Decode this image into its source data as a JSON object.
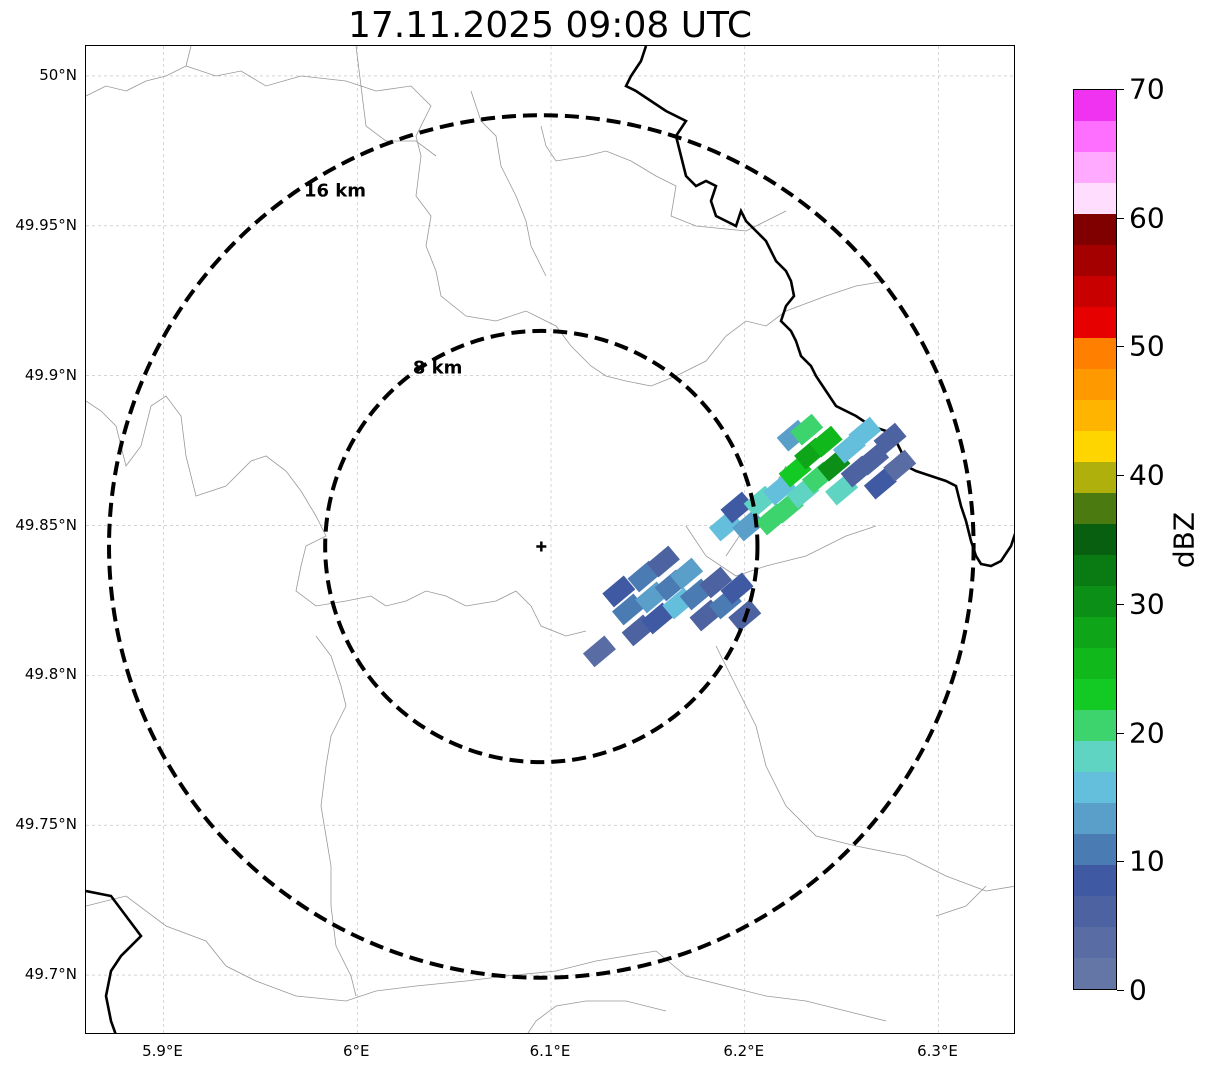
{
  "title": "17.11.2025 09:08 UTC",
  "map": {
    "lon_range": [
      5.86,
      6.34
    ],
    "lat_range": [
      49.68,
      50.01
    ],
    "lon_ticks": [
      {
        "value": 5.9,
        "label": "5.9°E"
      },
      {
        "value": 6.0,
        "label": "6°E"
      },
      {
        "value": 6.1,
        "label": "6.1°E"
      },
      {
        "value": 6.2,
        "label": "6.2°E"
      },
      {
        "value": 6.3,
        "label": "6.3°E"
      }
    ],
    "lat_ticks": [
      {
        "value": 50.0,
        "label": "50°N"
      },
      {
        "value": 49.95,
        "label": "49.95°N"
      },
      {
        "value": 49.9,
        "label": "49.9°N"
      },
      {
        "value": 49.85,
        "label": "49.85°N"
      },
      {
        "value": 49.8,
        "label": "49.8°N"
      },
      {
        "value": 49.75,
        "label": "49.75°N"
      },
      {
        "value": 49.7,
        "label": "49.7°N"
      }
    ],
    "gridlines": true,
    "radar_site": {
      "lon": 6.095,
      "lat": 49.843
    },
    "range_rings": [
      {
        "radius_km": 8,
        "label": "8 km"
      },
      {
        "radius_km": 16,
        "label": "16 km"
      }
    ]
  },
  "reflectivity_cells": [
    {
      "lon": 6.125,
      "lat": 49.808,
      "dbz": 4
    },
    {
      "lon": 6.135,
      "lat": 49.828,
      "dbz": 8
    },
    {
      "lon": 6.14,
      "lat": 49.822,
      "dbz": 10
    },
    {
      "lon": 6.145,
      "lat": 49.815,
      "dbz": 6
    },
    {
      "lon": 6.148,
      "lat": 49.833,
      "dbz": 12
    },
    {
      "lon": 6.152,
      "lat": 49.826,
      "dbz": 14
    },
    {
      "lon": 6.155,
      "lat": 49.819,
      "dbz": 9
    },
    {
      "lon": 6.158,
      "lat": 49.838,
      "dbz": 5
    },
    {
      "lon": 6.162,
      "lat": 49.83,
      "dbz": 11
    },
    {
      "lon": 6.166,
      "lat": 49.824,
      "dbz": 16
    },
    {
      "lon": 6.17,
      "lat": 49.834,
      "dbz": 13
    },
    {
      "lon": 6.175,
      "lat": 49.827,
      "dbz": 10
    },
    {
      "lon": 6.18,
      "lat": 49.82,
      "dbz": 7
    },
    {
      "lon": 6.185,
      "lat": 49.831,
      "dbz": 5
    },
    {
      "lon": 6.19,
      "lat": 49.824,
      "dbz": 12
    },
    {
      "lon": 6.196,
      "lat": 49.829,
      "dbz": 8
    },
    {
      "lon": 6.2,
      "lat": 49.82,
      "dbz": 6
    },
    {
      "lon": 6.19,
      "lat": 49.85,
      "dbz": 17
    },
    {
      "lon": 6.196,
      "lat": 49.856,
      "dbz": 9
    },
    {
      "lon": 6.202,
      "lat": 49.85,
      "dbz": 14
    },
    {
      "lon": 6.208,
      "lat": 49.858,
      "dbz": 18
    },
    {
      "lon": 6.214,
      "lat": 49.852,
      "dbz": 22
    },
    {
      "lon": 6.218,
      "lat": 49.862,
      "dbz": 16
    },
    {
      "lon": 6.222,
      "lat": 49.856,
      "dbz": 20
    },
    {
      "lon": 6.226,
      "lat": 49.868,
      "dbz": 24
    },
    {
      "lon": 6.23,
      "lat": 49.861,
      "dbz": 18
    },
    {
      "lon": 6.234,
      "lat": 49.874,
      "dbz": 28
    },
    {
      "lon": 6.238,
      "lat": 49.866,
      "dbz": 22
    },
    {
      "lon": 6.242,
      "lat": 49.878,
      "dbz": 26
    },
    {
      "lon": 6.246,
      "lat": 49.87,
      "dbz": 30
    },
    {
      "lon": 6.25,
      "lat": 49.862,
      "dbz": 19
    },
    {
      "lon": 6.254,
      "lat": 49.876,
      "dbz": 15
    },
    {
      "lon": 6.258,
      "lat": 49.868,
      "dbz": 7
    },
    {
      "lon": 6.262,
      "lat": 49.881,
      "dbz": 17
    },
    {
      "lon": 6.266,
      "lat": 49.872,
      "dbz": 5
    },
    {
      "lon": 6.27,
      "lat": 49.864,
      "dbz": 9
    },
    {
      "lon": 6.275,
      "lat": 49.879,
      "dbz": 6
    },
    {
      "lon": 6.28,
      "lat": 49.87,
      "dbz": 4
    },
    {
      "lon": 6.225,
      "lat": 49.88,
      "dbz": 13
    },
    {
      "lon": 6.232,
      "lat": 49.882,
      "dbz": 21
    }
  ],
  "colorbar": {
    "label": "dBZ",
    "min": 0,
    "max": 70,
    "step": 2.5,
    "tick_labels": [
      "0",
      "10",
      "20",
      "30",
      "40",
      "50",
      "60",
      "70"
    ],
    "colors": [
      "#6476a6",
      "#5a6ca4",
      "#4d62a0",
      "#3f5aa3",
      "#4b7bb3",
      "#5a9fc9",
      "#63bfdc",
      "#5fd4c3",
      "#3dd46e",
      "#13c923",
      "#10b81c",
      "#0ea519",
      "#0c8f16",
      "#0a7a13",
      "#075f0f",
      "#4b7a10",
      "#b0b00c",
      "#ffd500",
      "#ffb400",
      "#ff9900",
      "#ff7f00",
      "#e60000",
      "#c80000",
      "#a50000",
      "#800000",
      "#ffddff",
      "#ffaaff",
      "#ff6fff",
      "#f033f0"
    ]
  }
}
